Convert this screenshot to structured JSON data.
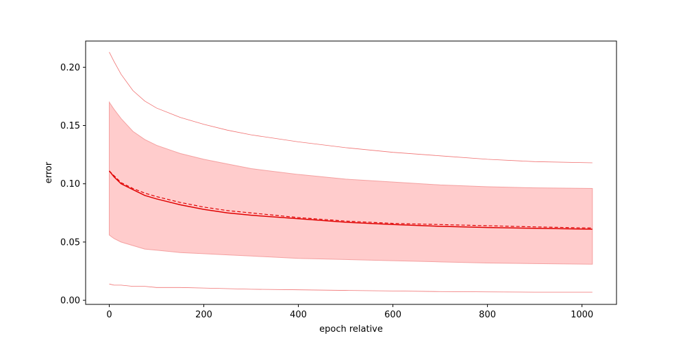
{
  "chart_data": {
    "type": "line",
    "title": "",
    "xlabel": "epoch relative",
    "ylabel": "error",
    "xlim": [
      -50,
      1073
    ],
    "ylim": [
      -0.0035,
      0.2225
    ],
    "grid": false,
    "x_ticks": [
      0,
      200,
      400,
      600,
      800,
      1000
    ],
    "x_tick_labels": [
      "0",
      "200",
      "400",
      "600",
      "800",
      "1000"
    ],
    "y_ticks": [
      0.0,
      0.05,
      0.1,
      0.15,
      0.2
    ],
    "y_tick_labels": [
      "0.00",
      "0.05",
      "0.10",
      "0.15",
      "0.20"
    ],
    "x": [
      0,
      10,
      25,
      50,
      75,
      100,
      150,
      200,
      250,
      300,
      400,
      500,
      600,
      700,
      800,
      900,
      1022
    ],
    "series": [
      {
        "style": "solid",
        "role": "mean",
        "color": "#e00000",
        "values": [
          0.111,
          0.106,
          0.1,
          0.095,
          0.09,
          0.087,
          0.082,
          0.078,
          0.075,
          0.073,
          0.07,
          0.067,
          0.065,
          0.0635,
          0.0625,
          0.0618,
          0.061
        ]
      },
      {
        "style": "dashed",
        "role": "median",
        "color": "#e00000",
        "values": [
          0.111,
          0.107,
          0.101,
          0.096,
          0.092,
          0.089,
          0.084,
          0.08,
          0.077,
          0.075,
          0.071,
          0.068,
          0.066,
          0.065,
          0.064,
          0.063,
          0.062
        ]
      },
      {
        "style": "thin",
        "role": "max",
        "color": "#f07070",
        "values": [
          0.213,
          0.205,
          0.194,
          0.18,
          0.171,
          0.165,
          0.157,
          0.151,
          0.146,
          0.142,
          0.136,
          0.131,
          0.127,
          0.124,
          0.121,
          0.119,
          0.118
        ]
      },
      {
        "style": "thin",
        "role": "min",
        "color": "#f07070",
        "values": [
          0.014,
          0.013,
          0.013,
          0.012,
          0.012,
          0.011,
          0.011,
          0.0105,
          0.01,
          0.0095,
          0.009,
          0.0085,
          0.008,
          0.0075,
          0.0072,
          0.007,
          0.007
        ]
      }
    ],
    "band": {
      "color": "#ffcccc",
      "edge_color": "#f4a0a0",
      "upper": [
        0.17,
        0.164,
        0.156,
        0.145,
        0.138,
        0.133,
        0.126,
        0.121,
        0.117,
        0.113,
        0.108,
        0.104,
        0.1015,
        0.099,
        0.0975,
        0.0965,
        0.096
      ],
      "lower": [
        0.056,
        0.053,
        0.05,
        0.047,
        0.044,
        0.043,
        0.041,
        0.04,
        0.039,
        0.038,
        0.036,
        0.035,
        0.034,
        0.033,
        0.032,
        0.0315,
        0.031
      ]
    }
  }
}
